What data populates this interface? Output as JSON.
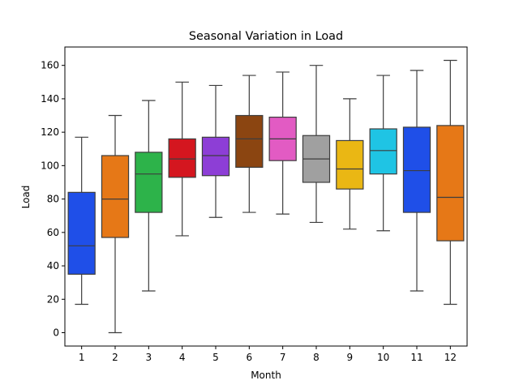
{
  "chart_data": {
    "type": "boxplot",
    "title": "Seasonal Variation in Load",
    "xlabel": "Month",
    "ylabel": "Load",
    "categories": [
      "1",
      "2",
      "3",
      "4",
      "5",
      "6",
      "7",
      "8",
      "9",
      "10",
      "11",
      "12"
    ],
    "boxes": [
      {
        "category": "1",
        "whisker_low": 17,
        "q1": 35,
        "median": 52,
        "q3": 84,
        "whisker_high": 117,
        "color": "#1f4fe8"
      },
      {
        "category": "2",
        "whisker_low": 0,
        "q1": 57,
        "median": 80,
        "q3": 106,
        "whisker_high": 130,
        "color": "#e67817"
      },
      {
        "category": "3",
        "whisker_low": 25,
        "q1": 72,
        "median": 95,
        "q3": 108,
        "whisker_high": 139,
        "color": "#2db34a"
      },
      {
        "category": "4",
        "whisker_low": 58,
        "q1": 93,
        "median": 104,
        "q3": 116,
        "whisker_high": 150,
        "color": "#d4161f"
      },
      {
        "category": "5",
        "whisker_low": 69,
        "q1": 94,
        "median": 106,
        "q3": 117,
        "whisker_high": 148,
        "color": "#8d3ed6"
      },
      {
        "category": "6",
        "whisker_low": 72,
        "q1": 99,
        "median": 116,
        "q3": 130,
        "whisker_high": 154,
        "color": "#8b4511"
      },
      {
        "category": "7",
        "whisker_low": 71,
        "q1": 103,
        "median": 116,
        "q3": 129,
        "whisker_high": 156,
        "color": "#e25bc3"
      },
      {
        "category": "8",
        "whisker_low": 66,
        "q1": 90,
        "median": 104,
        "q3": 118,
        "whisker_high": 160,
        "color": "#a0a0a0"
      },
      {
        "category": "9",
        "whisker_low": 62,
        "q1": 86,
        "median": 98,
        "q3": 115,
        "whisker_high": 140,
        "color": "#eab714"
      },
      {
        "category": "10",
        "whisker_low": 61,
        "q1": 95,
        "median": 109,
        "q3": 122,
        "whisker_high": 154,
        "color": "#1fc4e4"
      },
      {
        "category": "11",
        "whisker_low": 25,
        "q1": 72,
        "median": 97,
        "q3": 123,
        "whisker_high": 157,
        "color": "#1f4fe8"
      },
      {
        "category": "12",
        "whisker_low": 17,
        "q1": 55,
        "median": 81,
        "q3": 124,
        "whisker_high": 163,
        "color": "#e67817"
      }
    ],
    "yticks": [
      0,
      20,
      40,
      60,
      80,
      100,
      120,
      140,
      160
    ],
    "ylim": [
      -8,
      171
    ],
    "grid": false,
    "legend": "none"
  }
}
